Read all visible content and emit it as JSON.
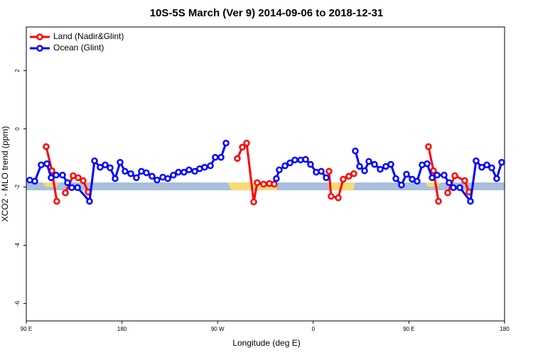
{
  "chart_data": {
    "type": "line",
    "title": "10S-5S March (Ver 9)   2014-09-06 to 2018-12-31",
    "x_label": "Longitude (deg E)",
    "y_label": "XCO2 - MLO trend (ppm)",
    "xlim": [
      90,
      540
    ],
    "ylim": [
      -6.6,
      3.5
    ],
    "xticks": [
      {
        "value": 90,
        "label": "90 E"
      },
      {
        "value": 180,
        "label": "180"
      },
      {
        "value": 270,
        "label": "90 W"
      },
      {
        "value": 360,
        "label": "0"
      },
      {
        "value": 450,
        "label": "90 E"
      },
      {
        "value": 540,
        "label": "180"
      }
    ],
    "yticks": [
      2,
      0,
      -2,
      -4,
      -6
    ],
    "legend": "top-left",
    "series": [
      {
        "name": "Land (Nadir&Glint)",
        "color": "#ff0000",
        "x": [
          108.7,
          114.1,
          118.7,
          null,
          126.8,
          134.1,
          138.8,
          143.5,
          148.2,
          null,
          288.6,
          293.3,
          297.3,
          304.0,
          307.3,
          313.3,
          318.7,
          323.3,
          null,
          374.8,
          376.8,
          383.5,
          388.2,
          393.5,
          398.2,
          null,
          468.4,
          473.1,
          477.8,
          null,
          486.5,
          493.2,
          502.5,
          506.5
        ],
        "values": [
          -0.61,
          -1.44,
          -2.49,
          null,
          -2.2,
          -1.61,
          -1.68,
          -1.78,
          -2.17,
          null,
          -1.02,
          -0.63,
          -0.49,
          -2.51,
          -1.85,
          -1.9,
          -1.88,
          -1.9,
          null,
          -1.46,
          -2.32,
          -2.37,
          -1.73,
          -1.63,
          -1.54,
          null,
          -0.61,
          -1.44,
          -2.49,
          null,
          -2.2,
          -1.61,
          -1.78,
          -2.17
        ]
      },
      {
        "name": "Ocean (Glint)",
        "color": "#0000ff",
        "x": [
          93.3,
          98.0,
          104.0,
          109.4,
          113.4,
          118.1,
          124.1,
          128.8,
          132.8,
          138.2,
          149.5,
          154.2,
          159.5,
          164.2,
          168.9,
          173.6,
          178.3,
          182.9,
          188.3,
          193.6,
          198.3,
          203.0,
          208.3,
          213.0,
          218.4,
          223.1,
          228.4,
          233.1,
          238.4,
          243.1,
          248.5,
          253.1,
          257.8,
          263.2,
          267.8,
          273.2,
          277.9,
          null,
          325.3,
          328.0,
          333.4,
          338.1,
          342.7,
          348.1,
          352.8,
          357.4,
          362.8,
          367.5,
          372.2,
          null,
          399.6,
          403.6,
          408.3,
          412.3,
          417.6,
          423.0,
          428.3,
          433.0,
          437.7,
          443.0,
          447.7,
          453.1,
          457.7,
          462.4,
          467.1,
          471.8,
          476.5,
          483.1,
          487.8,
          491.8,
          497.9,
          507.9,
          513.2,
          518.6,
          523.3,
          527.9,
          532.6,
          537.3
        ],
        "values": [
          -1.76,
          -1.8,
          -1.24,
          -1.2,
          -1.68,
          -1.59,
          -1.59,
          -1.85,
          -2.02,
          -2.02,
          -2.49,
          -1.1,
          -1.32,
          -1.24,
          -1.34,
          -1.71,
          -1.15,
          -1.46,
          -1.54,
          -1.68,
          -1.46,
          -1.51,
          -1.63,
          -1.76,
          -1.66,
          -1.71,
          -1.59,
          -1.49,
          -1.49,
          -1.41,
          -1.46,
          -1.37,
          -1.32,
          -1.27,
          -0.98,
          -0.98,
          -0.49,
          null,
          -1.71,
          -1.41,
          -1.27,
          -1.17,
          -1.07,
          -1.07,
          -1.05,
          -1.22,
          -1.49,
          -1.46,
          -1.68,
          null,
          -0.76,
          -1.29,
          -1.44,
          -1.12,
          -1.22,
          -1.39,
          -1.29,
          -1.22,
          -1.71,
          -1.93,
          -1.56,
          -1.73,
          -1.8,
          -1.24,
          -1.2,
          -1.68,
          -1.59,
          -1.59,
          -1.85,
          -2.02,
          -2.02,
          -2.49,
          -1.1,
          -1.32,
          -1.24,
          -1.34,
          -1.71,
          -1.15
        ]
      }
    ]
  }
}
